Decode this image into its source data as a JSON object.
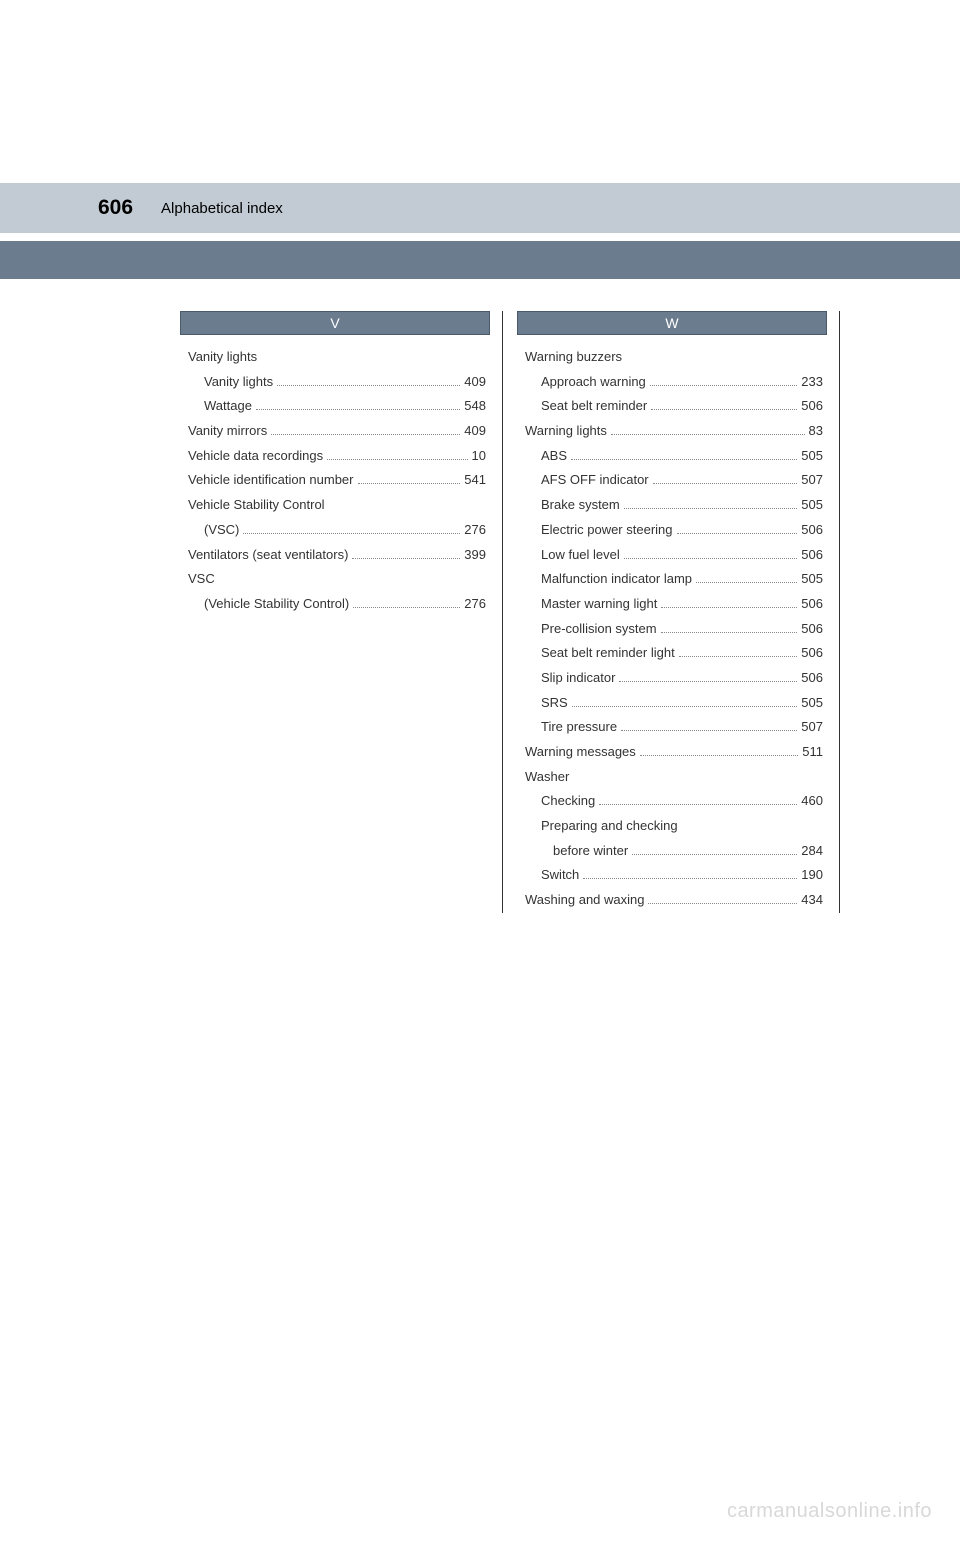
{
  "header": {
    "pageNumber": "606",
    "title": "Alphabetical index"
  },
  "colors": {
    "topHeaderBg": "#c2cbd3",
    "darkBarBg": "#6b7c8e",
    "letterHeaderBg": "#6b7c8e",
    "letterHeaderText": "#ffffff",
    "bodyText": "#333333",
    "watermark": "#d8d8d8"
  },
  "leftColumn": {
    "letter": "V",
    "entries": [
      {
        "label": "Vanity lights",
        "page": null,
        "level": 0
      },
      {
        "label": "Vanity lights",
        "page": "409",
        "level": 1
      },
      {
        "label": "Wattage",
        "page": "548",
        "level": 1
      },
      {
        "label": "Vanity mirrors",
        "page": "409",
        "level": 0
      },
      {
        "label": "Vehicle data recordings",
        "page": "10",
        "level": 0
      },
      {
        "label": "Vehicle identification number",
        "page": "541",
        "level": 0
      },
      {
        "label": "Vehicle Stability Control",
        "page": null,
        "level": 0
      },
      {
        "label": "(VSC)",
        "page": "276",
        "level": 1,
        "continuation": true
      },
      {
        "label": "Ventilators (seat ventilators)",
        "page": "399",
        "level": 0
      },
      {
        "label": "VSC",
        "page": null,
        "level": 0
      },
      {
        "label": "(Vehicle Stability Control)",
        "page": "276",
        "level": 1,
        "continuation": true
      }
    ]
  },
  "rightColumn": {
    "letter": "W",
    "entries": [
      {
        "label": "Warning buzzers",
        "page": null,
        "level": 0
      },
      {
        "label": "Approach warning",
        "page": "233",
        "level": 1
      },
      {
        "label": "Seat belt reminder",
        "page": "506",
        "level": 1
      },
      {
        "label": "Warning lights",
        "page": "83",
        "level": 0
      },
      {
        "label": "ABS",
        "page": "505",
        "level": 1
      },
      {
        "label": "AFS OFF indicator",
        "page": "507",
        "level": 1
      },
      {
        "label": "Brake system",
        "page": "505",
        "level": 1
      },
      {
        "label": "Electric power steering",
        "page": "506",
        "level": 1
      },
      {
        "label": "Low fuel level",
        "page": "506",
        "level": 1
      },
      {
        "label": "Malfunction indicator lamp",
        "page": "505",
        "level": 1
      },
      {
        "label": "Master warning light",
        "page": "506",
        "level": 1
      },
      {
        "label": "Pre-collision system",
        "page": "506",
        "level": 1
      },
      {
        "label": "Seat belt reminder light",
        "page": "506",
        "level": 1
      },
      {
        "label": "Slip indicator",
        "page": "506",
        "level": 1
      },
      {
        "label": "SRS",
        "page": "505",
        "level": 1
      },
      {
        "label": "Tire pressure",
        "page": "507",
        "level": 1
      },
      {
        "label": "Warning messages",
        "page": "511",
        "level": 0
      },
      {
        "label": "Washer",
        "page": null,
        "level": 0
      },
      {
        "label": "Checking",
        "page": "460",
        "level": 1
      },
      {
        "label": "Preparing and checking",
        "page": null,
        "level": 1
      },
      {
        "label": "before winter",
        "page": "284",
        "level": 2,
        "continuation": true
      },
      {
        "label": "Switch",
        "page": "190",
        "level": 1
      },
      {
        "label": "Washing and waxing",
        "page": "434",
        "level": 0
      }
    ]
  },
  "watermark": "carmanualsonline.info"
}
